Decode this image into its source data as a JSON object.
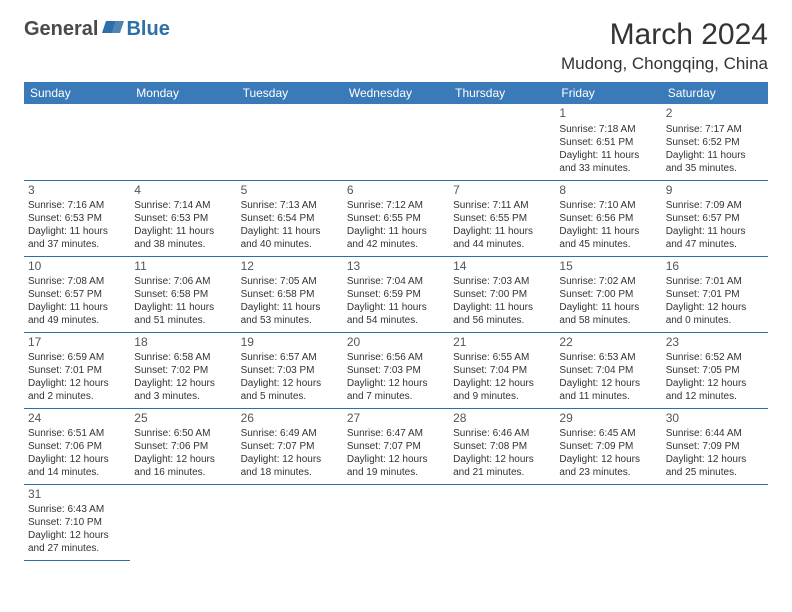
{
  "logo": {
    "part1": "General",
    "part2": "Blue"
  },
  "title": "March 2024",
  "location": "Mudong, Chongqing, China",
  "colors": {
    "header_bg": "#3a7ab8",
    "header_text": "#ffffff",
    "border": "#2f6fa8",
    "logo_gray": "#4a4a4a",
    "logo_blue": "#2f6fa8",
    "text": "#333333"
  },
  "weekdays": [
    "Sunday",
    "Monday",
    "Tuesday",
    "Wednesday",
    "Thursday",
    "Friday",
    "Saturday"
  ],
  "days": [
    {
      "n": 1,
      "sr": "7:18 AM",
      "ss": "6:51 PM",
      "dl": "11 hours and 33 minutes."
    },
    {
      "n": 2,
      "sr": "7:17 AM",
      "ss": "6:52 PM",
      "dl": "11 hours and 35 minutes."
    },
    {
      "n": 3,
      "sr": "7:16 AM",
      "ss": "6:53 PM",
      "dl": "11 hours and 37 minutes."
    },
    {
      "n": 4,
      "sr": "7:14 AM",
      "ss": "6:53 PM",
      "dl": "11 hours and 38 minutes."
    },
    {
      "n": 5,
      "sr": "7:13 AM",
      "ss": "6:54 PM",
      "dl": "11 hours and 40 minutes."
    },
    {
      "n": 6,
      "sr": "7:12 AM",
      "ss": "6:55 PM",
      "dl": "11 hours and 42 minutes."
    },
    {
      "n": 7,
      "sr": "7:11 AM",
      "ss": "6:55 PM",
      "dl": "11 hours and 44 minutes."
    },
    {
      "n": 8,
      "sr": "7:10 AM",
      "ss": "6:56 PM",
      "dl": "11 hours and 45 minutes."
    },
    {
      "n": 9,
      "sr": "7:09 AM",
      "ss": "6:57 PM",
      "dl": "11 hours and 47 minutes."
    },
    {
      "n": 10,
      "sr": "7:08 AM",
      "ss": "6:57 PM",
      "dl": "11 hours and 49 minutes."
    },
    {
      "n": 11,
      "sr": "7:06 AM",
      "ss": "6:58 PM",
      "dl": "11 hours and 51 minutes."
    },
    {
      "n": 12,
      "sr": "7:05 AM",
      "ss": "6:58 PM",
      "dl": "11 hours and 53 minutes."
    },
    {
      "n": 13,
      "sr": "7:04 AM",
      "ss": "6:59 PM",
      "dl": "11 hours and 54 minutes."
    },
    {
      "n": 14,
      "sr": "7:03 AM",
      "ss": "7:00 PM",
      "dl": "11 hours and 56 minutes."
    },
    {
      "n": 15,
      "sr": "7:02 AM",
      "ss": "7:00 PM",
      "dl": "11 hours and 58 minutes."
    },
    {
      "n": 16,
      "sr": "7:01 AM",
      "ss": "7:01 PM",
      "dl": "12 hours and 0 minutes."
    },
    {
      "n": 17,
      "sr": "6:59 AM",
      "ss": "7:01 PM",
      "dl": "12 hours and 2 minutes."
    },
    {
      "n": 18,
      "sr": "6:58 AM",
      "ss": "7:02 PM",
      "dl": "12 hours and 3 minutes."
    },
    {
      "n": 19,
      "sr": "6:57 AM",
      "ss": "7:03 PM",
      "dl": "12 hours and 5 minutes."
    },
    {
      "n": 20,
      "sr": "6:56 AM",
      "ss": "7:03 PM",
      "dl": "12 hours and 7 minutes."
    },
    {
      "n": 21,
      "sr": "6:55 AM",
      "ss": "7:04 PM",
      "dl": "12 hours and 9 minutes."
    },
    {
      "n": 22,
      "sr": "6:53 AM",
      "ss": "7:04 PM",
      "dl": "12 hours and 11 minutes."
    },
    {
      "n": 23,
      "sr": "6:52 AM",
      "ss": "7:05 PM",
      "dl": "12 hours and 12 minutes."
    },
    {
      "n": 24,
      "sr": "6:51 AM",
      "ss": "7:06 PM",
      "dl": "12 hours and 14 minutes."
    },
    {
      "n": 25,
      "sr": "6:50 AM",
      "ss": "7:06 PM",
      "dl": "12 hours and 16 minutes."
    },
    {
      "n": 26,
      "sr": "6:49 AM",
      "ss": "7:07 PM",
      "dl": "12 hours and 18 minutes."
    },
    {
      "n": 27,
      "sr": "6:47 AM",
      "ss": "7:07 PM",
      "dl": "12 hours and 19 minutes."
    },
    {
      "n": 28,
      "sr": "6:46 AM",
      "ss": "7:08 PM",
      "dl": "12 hours and 21 minutes."
    },
    {
      "n": 29,
      "sr": "6:45 AM",
      "ss": "7:09 PM",
      "dl": "12 hours and 23 minutes."
    },
    {
      "n": 30,
      "sr": "6:44 AM",
      "ss": "7:09 PM",
      "dl": "12 hours and 25 minutes."
    },
    {
      "n": 31,
      "sr": "6:43 AM",
      "ss": "7:10 PM",
      "dl": "12 hours and 27 minutes."
    }
  ],
  "labels": {
    "sunrise": "Sunrise:",
    "sunset": "Sunset:",
    "daylight": "Daylight:"
  },
  "layout": {
    "first_weekday_index": 5,
    "rows": 6,
    "cols": 7
  }
}
